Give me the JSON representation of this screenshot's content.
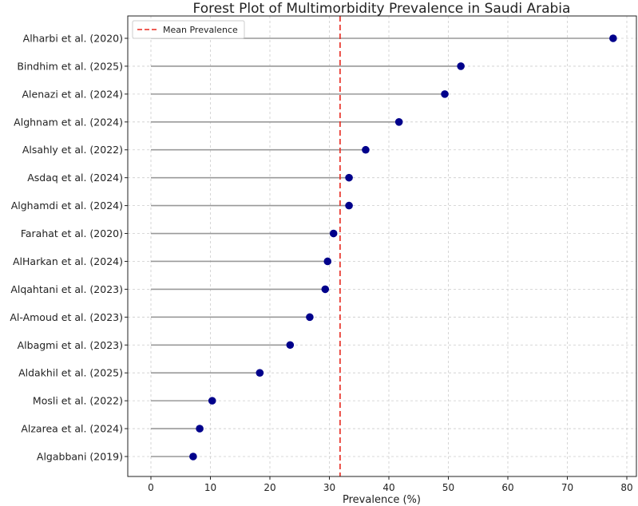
{
  "chart_data": {
    "type": "forest-lollipop",
    "title": "Forest Plot of Multimorbidity Prevalence in Saudi Arabia",
    "xlabel": "Prevalence (%)",
    "ylabel": "",
    "xlim": [
      -4,
      81.5
    ],
    "xticks": [
      0,
      10,
      20,
      30,
      40,
      50,
      60,
      70,
      80
    ],
    "grid": true,
    "legend": {
      "placement": "top-left",
      "entries": [
        "Mean Prevalence"
      ]
    },
    "mean_prevalence": 31.8,
    "colors": {
      "points": "#00008b",
      "stems": "#999999",
      "mean_line": "#e8281e",
      "grid": "#cccccc"
    },
    "studies": [
      "Alharbi et al. (2020)",
      "Bindhim et al. (2025)",
      "Alenazi et al. (2024)",
      "Alghnam et al. (2024)",
      "Alsahly et al. (2022)",
      "Asdaq et al. (2024)",
      "Alghamdi et al. (2024)",
      "Farahat et al. (2020)",
      "AlHarkan et al. (2024)",
      "Alqahtani et al. (2023)",
      "Al-Amoud et al. (2023)",
      "Albagmi et al. (2023)",
      "Aldakhil et al. (2025)",
      "Mosli et al. (2022)",
      "Alzarea et al. (2024)",
      "Algabbani (2019)"
    ],
    "values": [
      77.7,
      52.1,
      49.4,
      41.7,
      36.1,
      33.3,
      33.3,
      30.7,
      29.7,
      29.3,
      26.7,
      23.4,
      18.3,
      10.3,
      8.2,
      7.1
    ]
  }
}
